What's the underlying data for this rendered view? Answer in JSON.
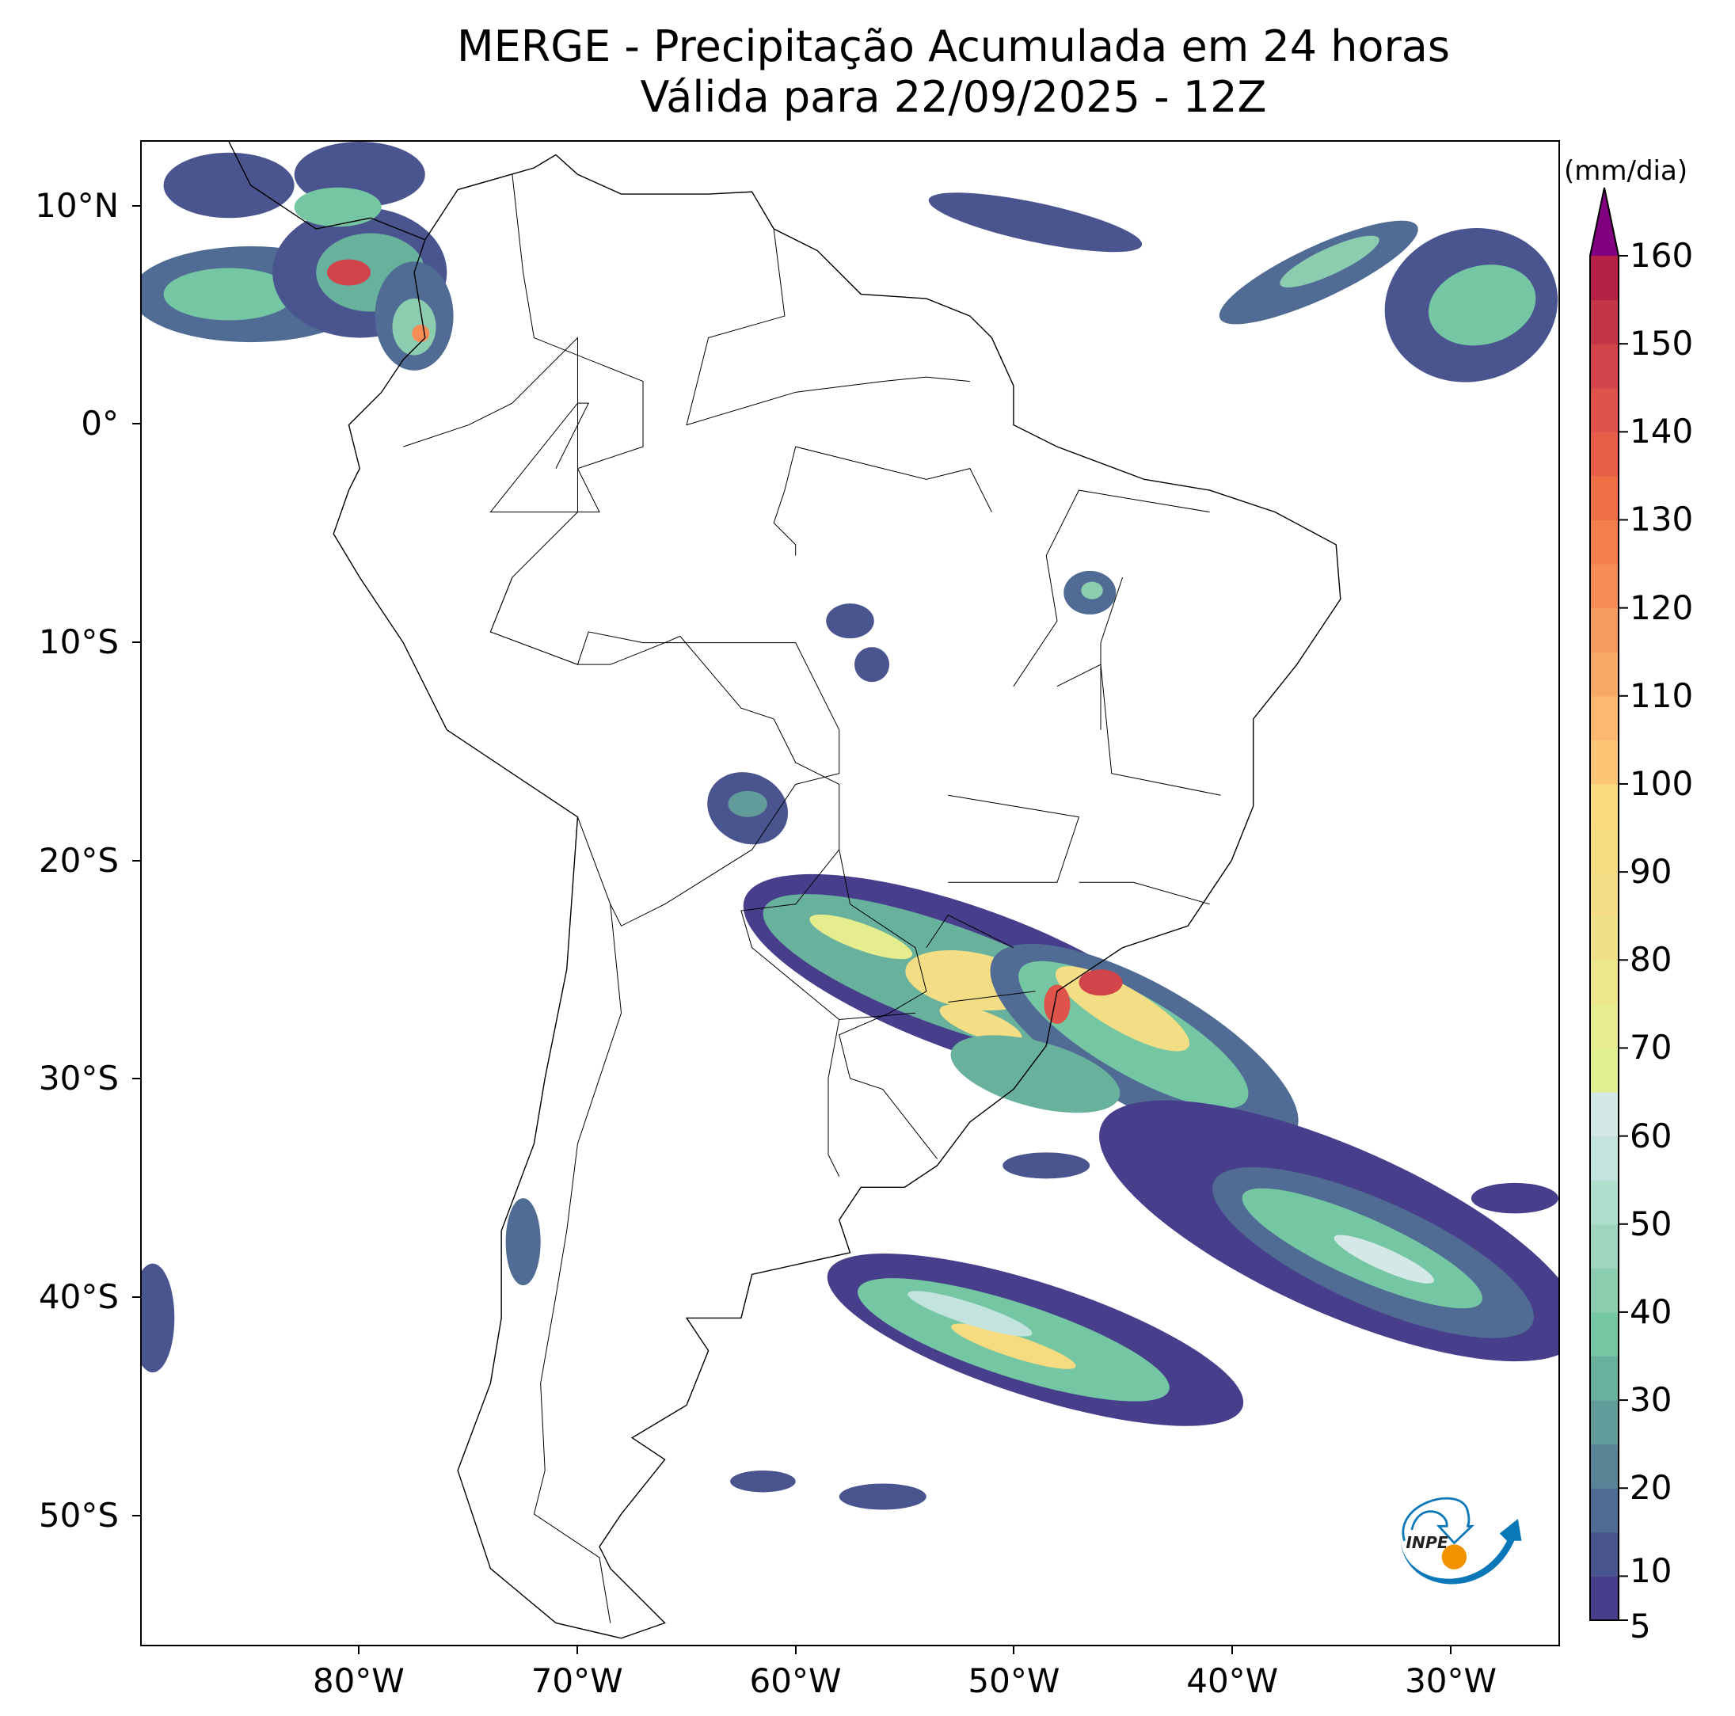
{
  "title": {
    "line1": "MERGE - Precipitação Acumulada em 24 horas",
    "line2": "Válida para 22/09/2025 - 12Z"
  },
  "map": {
    "extent_lon": [
      -90,
      -25
    ],
    "extent_lat": [
      -56,
      13
    ],
    "lat_ticks": [
      {
        "value": 10,
        "label": "10°N"
      },
      {
        "value": 0,
        "label": "0°"
      },
      {
        "value": -10,
        "label": "10°S"
      },
      {
        "value": -20,
        "label": "20°S"
      },
      {
        "value": -30,
        "label": "30°S"
      },
      {
        "value": -40,
        "label": "40°S"
      },
      {
        "value": -50,
        "label": "50°S"
      }
    ],
    "lon_ticks": [
      {
        "value": -80,
        "label": "80°W"
      },
      {
        "value": -70,
        "label": "70°W"
      },
      {
        "value": -60,
        "label": "60°W"
      },
      {
        "value": -50,
        "label": "50°W"
      },
      {
        "value": -40,
        "label": "40°W"
      },
      {
        "value": -30,
        "label": "30°W"
      }
    ]
  },
  "colorbar": {
    "unit": "(mm/dia)",
    "min": 5,
    "max": 160,
    "extend": "max",
    "tick_values": [
      5,
      10,
      20,
      30,
      40,
      50,
      60,
      70,
      80,
      90,
      100,
      110,
      120,
      130,
      140,
      150,
      160
    ],
    "tick_labels": [
      "5",
      "10",
      "20",
      "30",
      "40",
      "50",
      "60",
      "70",
      "80",
      "90",
      "100",
      "110",
      "120",
      "130",
      "140",
      "150",
      "160"
    ],
    "levels": [
      5,
      10,
      15,
      20,
      25,
      30,
      35,
      40,
      45,
      50,
      55,
      60,
      65,
      70,
      75,
      80,
      85,
      90,
      95,
      100,
      105,
      110,
      115,
      120,
      125,
      130,
      135,
      140,
      145,
      150,
      155,
      160
    ],
    "colors": [
      "#473e8c",
      "#4a5590",
      "#506c94",
      "#598496",
      "#619c9a",
      "#68b19d",
      "#75c7a3",
      "#8ccdb0",
      "#9fd5bf",
      "#b0dfce",
      "#c3e4de",
      "#d5e8e8",
      "#e1ef8f",
      "#e6ed8f",
      "#ebe78a",
      "#efe187",
      "#f3dd85",
      "#f6db80",
      "#fadc7e",
      "#fdc575",
      "#fcb86e",
      "#f9a866",
      "#f79a5e",
      "#f68d56",
      "#f47f4c",
      "#f07046",
      "#e85e48",
      "#de544a",
      "#d0444a",
      "#c33648",
      "#b52045"
    ],
    "extend_color": "#800080"
  },
  "logo": {
    "text": "INPE",
    "colors": {
      "blue": "#0a78b8",
      "orange": "#f39200"
    }
  }
}
